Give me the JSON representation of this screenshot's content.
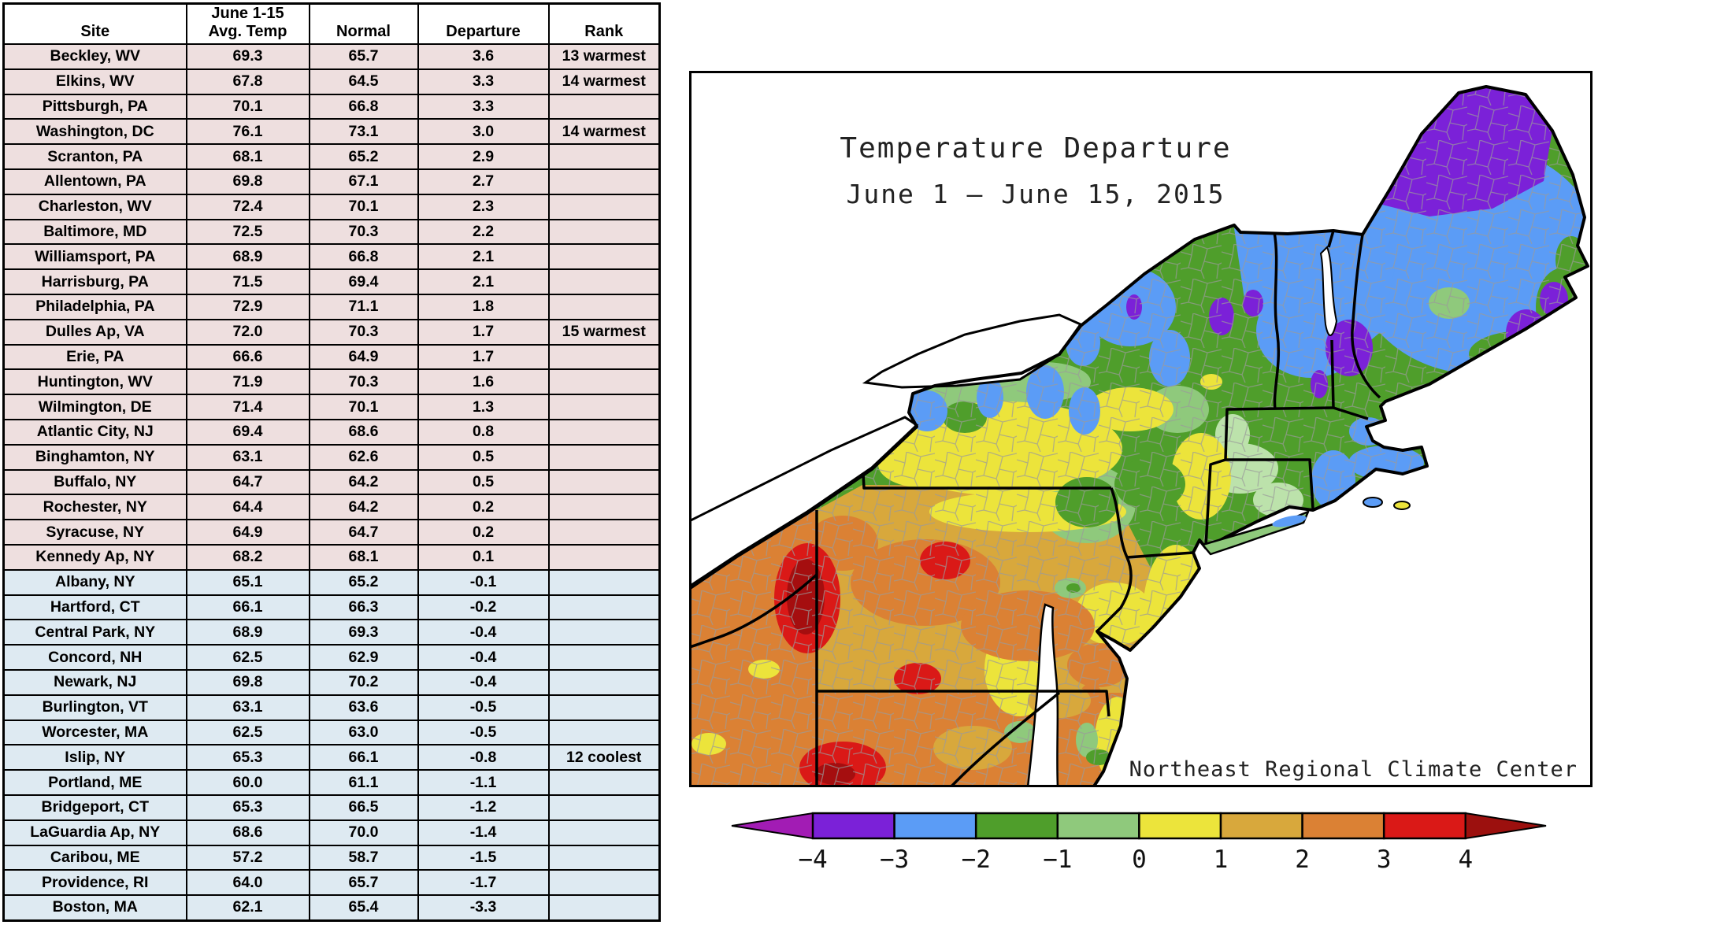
{
  "table": {
    "headers": [
      "Site",
      "June 1-15\nAvg. Temp",
      "Normal",
      "Departure",
      "Rank"
    ],
    "rows": [
      [
        "Beckley, WV",
        "69.3",
        "65.7",
        "3.6",
        "13 warmest"
      ],
      [
        "Elkins, WV",
        "67.8",
        "64.5",
        "3.3",
        "14 warmest"
      ],
      [
        "Pittsburgh, PA",
        "70.1",
        "66.8",
        "3.3",
        ""
      ],
      [
        "Washington, DC",
        "76.1",
        "73.1",
        "3.0",
        "14 warmest"
      ],
      [
        "Scranton, PA",
        "68.1",
        "65.2",
        "2.9",
        ""
      ],
      [
        "Allentown, PA",
        "69.8",
        "67.1",
        "2.7",
        ""
      ],
      [
        "Charleston, WV",
        "72.4",
        "70.1",
        "2.3",
        ""
      ],
      [
        "Baltimore, MD",
        "72.5",
        "70.3",
        "2.2",
        ""
      ],
      [
        "Williamsport, PA",
        "68.9",
        "66.8",
        "2.1",
        ""
      ],
      [
        "Harrisburg, PA",
        "71.5",
        "69.4",
        "2.1",
        ""
      ],
      [
        "Philadelphia, PA",
        "72.9",
        "71.1",
        "1.8",
        ""
      ],
      [
        "Dulles Ap, VA",
        "72.0",
        "70.3",
        "1.7",
        "15 warmest"
      ],
      [
        "Erie, PA",
        "66.6",
        "64.9",
        "1.7",
        ""
      ],
      [
        "Huntington, WV",
        "71.9",
        "70.3",
        "1.6",
        ""
      ],
      [
        "Wilmington, DE",
        "71.4",
        "70.1",
        "1.3",
        ""
      ],
      [
        "Atlantic City, NJ",
        "69.4",
        "68.6",
        "0.8",
        ""
      ],
      [
        "Binghamton, NY",
        "63.1",
        "62.6",
        "0.5",
        ""
      ],
      [
        "Buffalo, NY",
        "64.7",
        "64.2",
        "0.5",
        ""
      ],
      [
        "Rochester, NY",
        "64.4",
        "64.2",
        "0.2",
        ""
      ],
      [
        "Syracuse, NY",
        "64.9",
        "64.7",
        "0.2",
        ""
      ],
      [
        "Kennedy Ap, NY",
        "68.2",
        "68.1",
        "0.1",
        ""
      ],
      [
        "Albany, NY",
        "65.1",
        "65.2",
        "-0.1",
        ""
      ],
      [
        "Hartford, CT",
        "66.1",
        "66.3",
        "-0.2",
        ""
      ],
      [
        "Central Park, NY",
        "68.9",
        "69.3",
        "-0.4",
        ""
      ],
      [
        "Concord, NH",
        "62.5",
        "62.9",
        "-0.4",
        ""
      ],
      [
        "Newark, NJ",
        "69.8",
        "70.2",
        "-0.4",
        ""
      ],
      [
        "Burlington, VT",
        "63.1",
        "63.6",
        "-0.5",
        ""
      ],
      [
        "Worcester, MA",
        "62.5",
        "63.0",
        "-0.5",
        ""
      ],
      [
        "Islip, NY",
        "65.3",
        "66.1",
        "-0.8",
        "12 coolest"
      ],
      [
        "Portland, ME",
        "60.0",
        "61.1",
        "-1.1",
        ""
      ],
      [
        "Bridgeport, CT",
        "65.3",
        "66.5",
        "-1.2",
        ""
      ],
      [
        "LaGuardia Ap, NY",
        "68.6",
        "70.0",
        "-1.4",
        ""
      ],
      [
        "Caribou, ME",
        "57.2",
        "58.7",
        "-1.5",
        ""
      ],
      [
        "Providence, RI",
        "64.0",
        "65.7",
        "-1.7",
        ""
      ],
      [
        "Boston, MA",
        "62.1",
        "65.4",
        "-3.3",
        ""
      ]
    ],
    "row_color_positive": "#EEDFDF",
    "row_color_negative": "#DEEAF2"
  },
  "map": {
    "title_line1": "Temperature Departure",
    "title_line2": "June 1 — June 15, 2015",
    "attribution": "Northeast Regional Climate Center",
    "attribution_color": "#E04C4C"
  },
  "colorbar": {
    "ticks": [
      "−4",
      "−3",
      "−2",
      "−1",
      "0",
      "1",
      "2",
      "3",
      "4"
    ],
    "segment_colors": [
      "#7B21D8",
      "#5B9CF6",
      "#4F9E2B",
      "#8FC97C",
      "#ECE43B",
      "#D8A83C",
      "#DB8134",
      "#DA1917"
    ],
    "left_arrow_color": "#A21CB4",
    "right_arrow_color": "#9C100E"
  }
}
